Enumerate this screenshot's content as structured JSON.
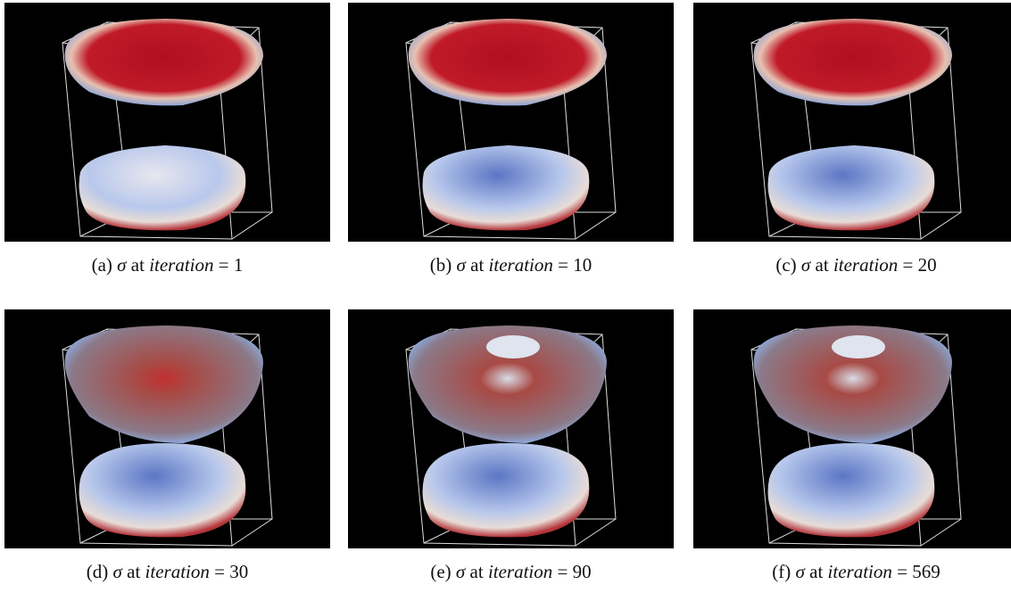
{
  "figure": {
    "panels": [
      {
        "label": "(a)",
        "symbol": "σ",
        "at": "at",
        "variable": "iteration",
        "equals": "=",
        "value": "1"
      },
      {
        "label": "(b)",
        "symbol": "σ",
        "at": "at",
        "variable": "iteration",
        "equals": "=",
        "value": "10"
      },
      {
        "label": "(c)",
        "symbol": "σ",
        "at": "at",
        "variable": "iteration",
        "equals": "=",
        "value": "20"
      },
      {
        "label": "(d)",
        "symbol": "σ",
        "at": "at",
        "variable": "iteration",
        "equals": "=",
        "value": "30"
      },
      {
        "label": "(e)",
        "symbol": "σ",
        "at": "at",
        "variable": "iteration",
        "equals": "=",
        "value": "90"
      },
      {
        "label": "(f)",
        "symbol": "σ",
        "at": "at",
        "variable": "iteration",
        "equals": "=",
        "value": "569"
      }
    ]
  }
}
